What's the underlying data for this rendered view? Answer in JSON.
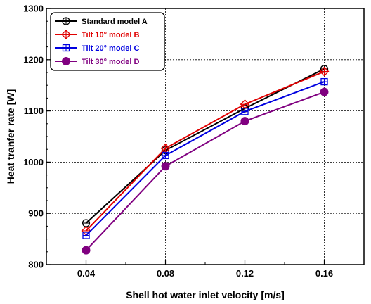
{
  "chart_data": {
    "type": "line",
    "title": "",
    "xlabel": "Shell hot water inlet velocity [m/s]",
    "ylabel": "Heat tranfer rate [W]",
    "x": [
      0.04,
      0.08,
      0.12,
      0.16
    ],
    "x_tick_labels": [
      "0.04",
      "0.08",
      "0.12",
      "0.16"
    ],
    "xlim": [
      0.02,
      0.18
    ],
    "ylim": [
      800,
      1300
    ],
    "y_ticks": [
      800,
      900,
      1000,
      1100,
      1200,
      1300
    ],
    "grid": true,
    "legend_position": "top-left",
    "series": [
      {
        "name": "Standard model  A",
        "color": "#000000",
        "marker": "circle-plus",
        "values": [
          881,
          1023,
          1105,
          1182
        ]
      },
      {
        "name": "Tilt 10° model B",
        "color": "#e00000",
        "marker": "diamond-plus",
        "values": [
          866,
          1027,
          1113,
          1177
        ]
      },
      {
        "name": "Tilt 20° model C",
        "color": "#0000e0",
        "marker": "square-plus",
        "values": [
          857,
          1013,
          1099,
          1157
        ]
      },
      {
        "name": "Tilt 30° model D",
        "color": "#800080",
        "marker": "filled-circle",
        "values": [
          828,
          992,
          1080,
          1137
        ]
      }
    ]
  }
}
